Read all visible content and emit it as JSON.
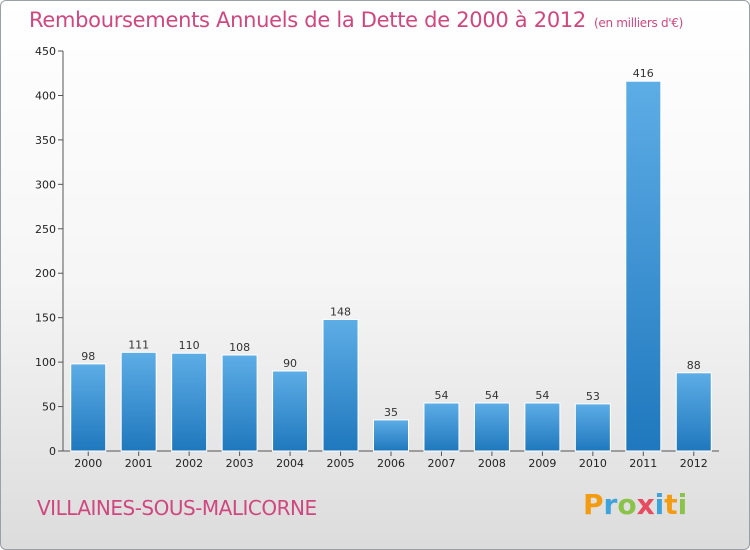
{
  "title": "Remboursements Annuels de la Dette de 2000 à 2012",
  "unit": "(en milliers d'€)",
  "commune": "VILLAINES-SOUS-MALICORNE",
  "logo": {
    "letters": [
      "P",
      "r",
      "o",
      "x",
      "i",
      "t",
      "i"
    ],
    "colors": [
      "#f39c12",
      "#3ea2db",
      "#8bc34a",
      "#e84a5f",
      "#3ea2db",
      "#f39c12",
      "#8bc34a"
    ]
  },
  "colors": {
    "bar_top": "#5dade6",
    "bar_bottom": "#1f78bd",
    "title": "#d0477f"
  },
  "chart_data": {
    "type": "bar",
    "title": "Remboursements Annuels de la Dette de 2000 à 2012",
    "categories": [
      "2000",
      "2001",
      "2002",
      "2003",
      "2004",
      "2005",
      "2006",
      "2007",
      "2008",
      "2009",
      "2010",
      "2011",
      "2012"
    ],
    "values": [
      98,
      111,
      110,
      108,
      90,
      148,
      35,
      54,
      54,
      54,
      53,
      416,
      88
    ],
    "ylim": [
      0,
      450
    ],
    "yticks": [
      0,
      50,
      100,
      150,
      200,
      250,
      300,
      350,
      400,
      450
    ],
    "grid": false,
    "legend": "none"
  }
}
